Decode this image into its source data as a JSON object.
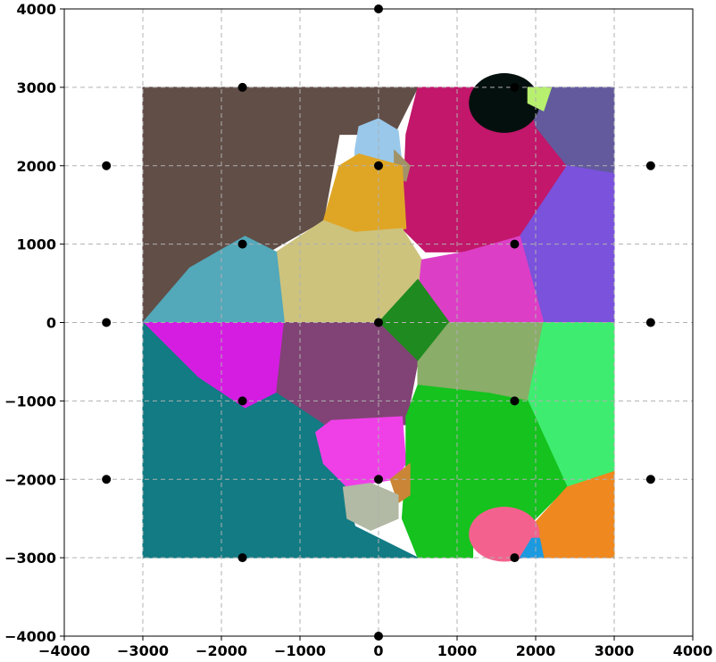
{
  "chart_data": {
    "type": "scatter",
    "title": "",
    "xlabel": "",
    "ylabel": "",
    "xlim": [
      -4000,
      4000
    ],
    "ylim": [
      -4000,
      4000
    ],
    "grid": true,
    "grid_style": "dashed",
    "xticks": [
      -4000,
      -3000,
      -2000,
      -1000,
      0,
      1000,
      2000,
      3000,
      4000
    ],
    "yticks": [
      -4000,
      -3000,
      -2000,
      -1000,
      0,
      1000,
      2000,
      3000,
      4000
    ],
    "xtick_labels": [
      "−4000",
      "−3000",
      "−2000",
      "−1000",
      "0",
      "1000",
      "2000",
      "3000",
      "4000"
    ],
    "ytick_labels": [
      "−4000",
      "−3000",
      "−2000",
      "−1000",
      "0",
      "1000",
      "2000",
      "3000",
      "4000"
    ],
    "region_extent": {
      "x": [
        -3000,
        3000
      ],
      "y": [
        -3000,
        3000
      ]
    },
    "points": [
      {
        "x": 0,
        "y": 4000
      },
      {
        "x": -1732,
        "y": 3000
      },
      {
        "x": 1732,
        "y": 3000
      },
      {
        "x": -3464,
        "y": 2000
      },
      {
        "x": 0,
        "y": 2000
      },
      {
        "x": 3464,
        "y": 2000
      },
      {
        "x": -1732,
        "y": 1000
      },
      {
        "x": 1732,
        "y": 1000
      },
      {
        "x": -3464,
        "y": 0
      },
      {
        "x": 0,
        "y": 0
      },
      {
        "x": 3464,
        "y": 0
      },
      {
        "x": -1732,
        "y": -1000
      },
      {
        "x": 1732,
        "y": -1000
      },
      {
        "x": -3464,
        "y": -2000
      },
      {
        "x": 0,
        "y": -2000
      },
      {
        "x": 3464,
        "y": -2000
      },
      {
        "x": -1732,
        "y": -3000
      },
      {
        "x": 1732,
        "y": -3000
      },
      {
        "x": 0,
        "y": -4000
      }
    ],
    "regions": [
      {
        "color": "#614e47",
        "polygon": [
          [
            -3000,
            3000
          ],
          [
            500,
            3000
          ],
          [
            200,
            2400
          ],
          [
            -500,
            2400
          ],
          [
            -700,
            1300
          ],
          [
            -1400,
            900
          ],
          [
            -1700,
            1100
          ],
          [
            -2400,
            700
          ],
          [
            -3000,
            0
          ]
        ]
      },
      {
        "color": "#c2176a",
        "polygon": [
          [
            500,
            3000
          ],
          [
            1200,
            3000
          ],
          [
            2000,
            2800
          ],
          [
            2400,
            2000
          ],
          [
            1800,
            1100
          ],
          [
            1100,
            900
          ],
          [
            600,
            900
          ],
          [
            300,
            1200
          ],
          [
            350,
            2400
          ]
        ]
      },
      {
        "color": "#625a9d",
        "polygon": [
          [
            1900,
            3000
          ],
          [
            3000,
            3000
          ],
          [
            3000,
            1900
          ],
          [
            2400,
            2000
          ],
          [
            2000,
            2500
          ]
        ]
      },
      {
        "color": "#7a52db",
        "polygon": [
          [
            2400,
            2000
          ],
          [
            3000,
            1900
          ],
          [
            3000,
            0
          ],
          [
            2100,
            0
          ],
          [
            1800,
            1100
          ]
        ]
      },
      {
        "color": "#04100e",
        "ellipse": {
          "cx": 1600,
          "cy": 2800,
          "rx": 450,
          "ry": 380
        }
      },
      {
        "color": "#b7f06e",
        "polygon": [
          [
            1900,
            3000
          ],
          [
            2200,
            3000
          ],
          [
            2100,
            2700
          ],
          [
            1900,
            2800
          ]
        ]
      },
      {
        "color": "#99c8ea",
        "polygon": [
          [
            -300,
            2200
          ],
          [
            -250,
            2500
          ],
          [
            0,
            2600
          ],
          [
            250,
            2450
          ],
          [
            300,
            2000
          ],
          [
            0,
            2000
          ],
          [
            -300,
            2000
          ]
        ]
      },
      {
        "color": "#a29268",
        "polygon": [
          [
            200,
            2200
          ],
          [
            400,
            2000
          ],
          [
            350,
            1800
          ],
          [
            200,
            1900
          ]
        ]
      },
      {
        "color": "#dfa626",
        "polygon": [
          [
            -700,
            1300
          ],
          [
            -500,
            2000
          ],
          [
            -250,
            2150
          ],
          [
            300,
            2000
          ],
          [
            350,
            1200
          ],
          [
            100,
            1150
          ],
          [
            -300,
            1150
          ],
          [
            -700,
            1200
          ]
        ]
      },
      {
        "color": "#cdc37d",
        "polygon": [
          [
            -1300,
            900
          ],
          [
            -700,
            1300
          ],
          [
            -300,
            1150
          ],
          [
            300,
            1200
          ],
          [
            550,
            800
          ],
          [
            550,
            500
          ],
          [
            100,
            0
          ],
          [
            -1200,
            0
          ]
        ]
      },
      {
        "color": "#53a8ba",
        "polygon": [
          [
            -3000,
            0
          ],
          [
            -2400,
            700
          ],
          [
            -1700,
            1100
          ],
          [
            -1300,
            900
          ],
          [
            -1200,
            0
          ]
        ]
      },
      {
        "color": "#dc3fc6",
        "polygon": [
          [
            550,
            800
          ],
          [
            1100,
            900
          ],
          [
            1800,
            1100
          ],
          [
            2100,
            0
          ],
          [
            900,
            0
          ],
          [
            500,
            300
          ]
        ]
      },
      {
        "color": "#1f8a1f",
        "polygon": [
          [
            0,
            0
          ],
          [
            500,
            550
          ],
          [
            900,
            0
          ],
          [
            500,
            -500
          ]
        ]
      },
      {
        "color": "#d51de2",
        "polygon": [
          [
            -3000,
            0
          ],
          [
            -1200,
            0
          ],
          [
            -1300,
            -900
          ],
          [
            -1700,
            -1100
          ],
          [
            -2300,
            -700
          ]
        ]
      },
      {
        "color": "#814375",
        "polygon": [
          [
            -1200,
            0
          ],
          [
            0,
            0
          ],
          [
            500,
            -500
          ],
          [
            350,
            -1300
          ],
          [
            -200,
            -1400
          ],
          [
            -700,
            -1300
          ],
          [
            -1300,
            -900
          ]
        ]
      },
      {
        "color": "#8aad69",
        "polygon": [
          [
            500,
            -500
          ],
          [
            900,
            0
          ],
          [
            2100,
            0
          ],
          [
            1900,
            -1000
          ],
          [
            1400,
            -900
          ],
          [
            500,
            -800
          ]
        ]
      },
      {
        "color": "#3eed6f",
        "polygon": [
          [
            2100,
            0
          ],
          [
            3000,
            0
          ],
          [
            3000,
            -1900
          ],
          [
            2400,
            -2100
          ],
          [
            1900,
            -1000
          ]
        ]
      },
      {
        "color": "#127b84",
        "polygon": [
          [
            -3000,
            0
          ],
          [
            -2300,
            -700
          ],
          [
            -1700,
            -1100
          ],
          [
            -1300,
            -900
          ],
          [
            -700,
            -1300
          ],
          [
            -500,
            -1800
          ],
          [
            -300,
            -2600
          ],
          [
            500,
            -3000
          ],
          [
            -3000,
            -3000
          ]
        ]
      },
      {
        "color": "#ef40e8",
        "polygon": [
          [
            -800,
            -1400
          ],
          [
            -600,
            -1250
          ],
          [
            300,
            -1200
          ],
          [
            350,
            -1800
          ],
          [
            200,
            -2000
          ],
          [
            -400,
            -2100
          ],
          [
            -700,
            -1800
          ]
        ]
      },
      {
        "color": "#15c21e",
        "polygon": [
          [
            350,
            -1200
          ],
          [
            500,
            -800
          ],
          [
            1400,
            -900
          ],
          [
            1900,
            -1000
          ],
          [
            2400,
            -2100
          ],
          [
            1900,
            -2600
          ],
          [
            1200,
            -2800
          ],
          [
            1200,
            -3000
          ],
          [
            500,
            -3000
          ],
          [
            300,
            -2500
          ],
          [
            350,
            -1800
          ]
        ]
      },
      {
        "color": "#ca8636",
        "polygon": [
          [
            150,
            -2000
          ],
          [
            400,
            -1800
          ],
          [
            400,
            -2200
          ],
          [
            250,
            -2300
          ]
        ]
      },
      {
        "color": "#b2b9a4",
        "polygon": [
          [
            -450,
            -2100
          ],
          [
            -100,
            -2050
          ],
          [
            250,
            -2200
          ],
          [
            250,
            -2500
          ],
          [
            -100,
            -2650
          ],
          [
            -400,
            -2500
          ]
        ]
      },
      {
        "color": "#ee881f",
        "polygon": [
          [
            2400,
            -2100
          ],
          [
            3000,
            -1900
          ],
          [
            3000,
            -3000
          ],
          [
            2100,
            -3000
          ],
          [
            1950,
            -2600
          ]
        ]
      },
      {
        "color": "#f3628e",
        "ellipse": {
          "cx": 1600,
          "cy": -2700,
          "rx": 450,
          "ry": 350
        }
      },
      {
        "color": "#1c9ae0",
        "polygon": [
          [
            1800,
            -3000
          ],
          [
            2100,
            -3000
          ],
          [
            2050,
            -2750
          ],
          [
            1950,
            -2750
          ]
        ]
      }
    ]
  }
}
